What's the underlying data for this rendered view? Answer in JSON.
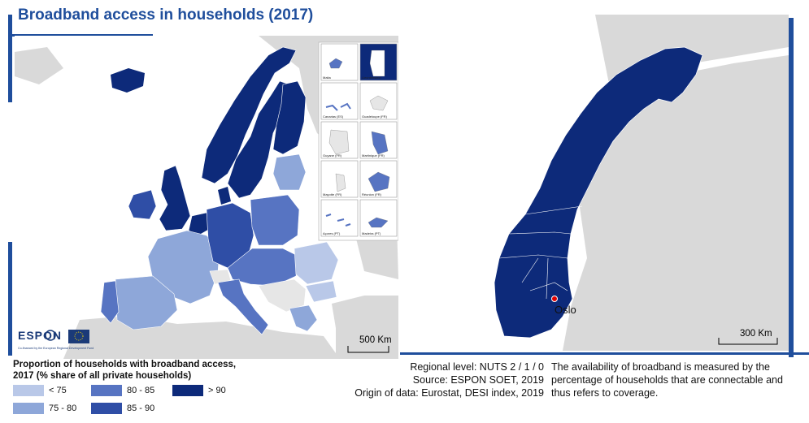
{
  "title": "Broadband access in households (2017)",
  "colors": {
    "brand_blue": "#1f4e9c",
    "class_lt75": "#b9c8e8",
    "class_75_80": "#8ea7d9",
    "class_80_85": "#5774c2",
    "class_85_90": "#2f4ea6",
    "class_gt90": "#0d2a7a",
    "no_data": "#e6e6e6",
    "outside": "#d9d9d9",
    "sea": "#ffffff",
    "oslo_marker": "#e00000"
  },
  "left_map": {
    "scale_label": "500 Km",
    "insets": [
      {
        "name": "Malta",
        "class": "80_85"
      },
      {
        "name": "Liechtenstein",
        "class": "gt90"
      },
      {
        "name": "Canarias (ES)",
        "class": "80_85"
      },
      {
        "name": "Guadeloupe (FR)",
        "class": "no_data"
      },
      {
        "name": "Guyane (FR)",
        "class": "no_data"
      },
      {
        "name": "Martinique (FR)",
        "class": "80_85"
      },
      {
        "name": "Mayotte (FR)",
        "class": "no_data"
      },
      {
        "name": "Réunion (FR)",
        "class": "80_85"
      },
      {
        "name": "Açores (PT)",
        "class": "80_85"
      },
      {
        "name": "Madeira (PT)",
        "class": "80_85"
      }
    ],
    "logo": {
      "name": "ESPON",
      "eu_caption": "Co-financed by the European Regional Development Fund"
    }
  },
  "right_map": {
    "scale_label": "300 Km",
    "city_label": "Oslo",
    "class": "gt90"
  },
  "legend": {
    "title": "Proportion of households with broadband access, 2017 (% share of all private households)",
    "items": [
      {
        "label": "< 75",
        "color": "#b9c8e8"
      },
      {
        "label": "75 - 80",
        "color": "#8ea7d9"
      },
      {
        "label": "80 - 85",
        "color": "#5774c2"
      },
      {
        "label": "85 - 90",
        "color": "#2f4ea6"
      },
      {
        "label": "> 90",
        "color": "#0d2a7a"
      }
    ]
  },
  "metadata": {
    "regional_level": "Regional level: NUTS 2 / 1 / 0",
    "source": "Source: ESPON SOET, 2019",
    "origin": "Origin of data: Eurostat, DESI index, 2019",
    "note": "The availability of broadband is measured by the percentage of households that are connectable and thus refers to coverage."
  }
}
